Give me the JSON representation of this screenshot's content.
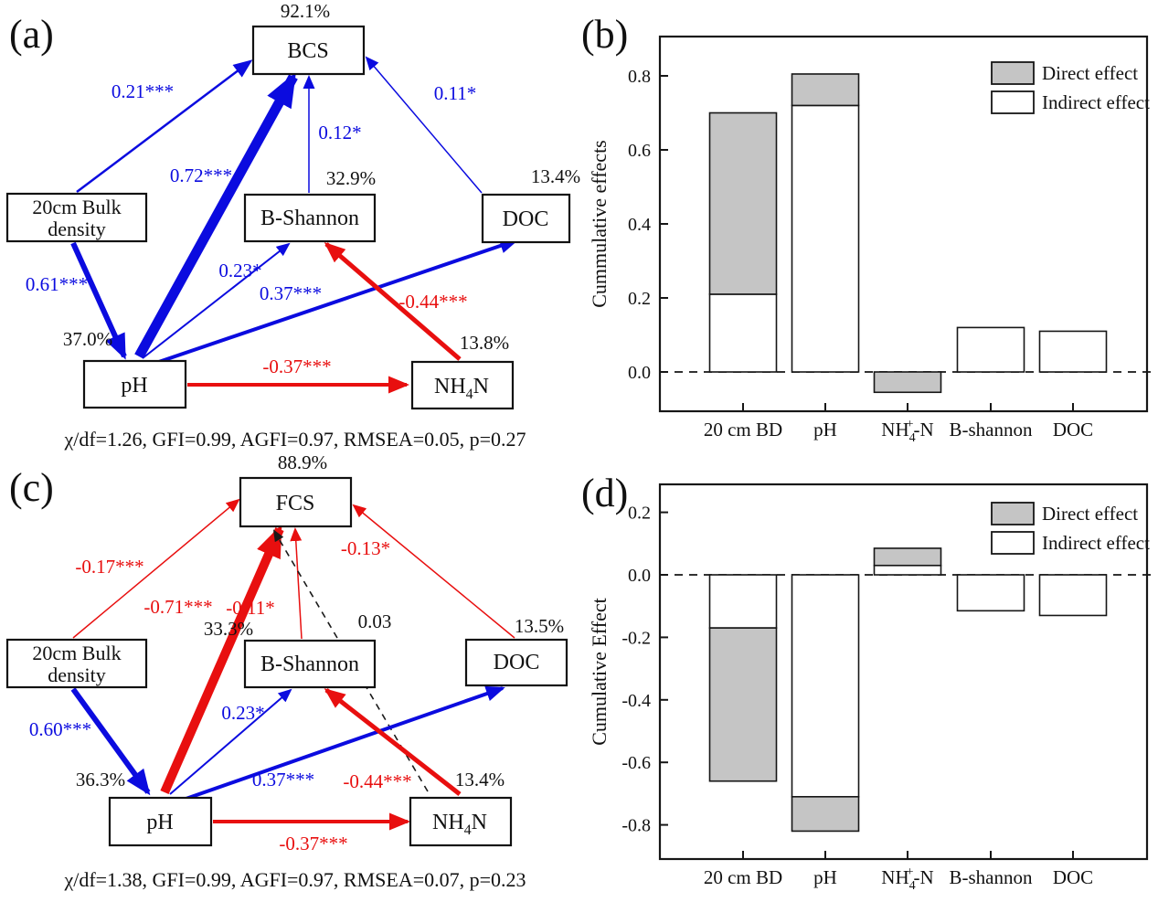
{
  "figure": {
    "panel_labels": {
      "a": "(a)",
      "b": "(b)",
      "c": "(c)",
      "d": "(d)"
    }
  },
  "colors": {
    "positive_path": "#0b0bdf",
    "negative_path": "#e80f0f",
    "nonsignificant_path": "#1a1a1a",
    "bar_gray": "#c5c5c5",
    "bar_white": "#ffffff"
  },
  "sem_a": {
    "nodes": {
      "bcs": {
        "label": "BCS",
        "r2": "92.1%"
      },
      "bulk": {
        "line1": "20cm Bulk",
        "line2": "density"
      },
      "bshannon": {
        "label": "B-Shannon",
        "r2": "32.9%"
      },
      "doc": {
        "label": "DOC",
        "r2": "13.4%"
      },
      "ph": {
        "label": "pH",
        "r2": "37.0%"
      },
      "nh4n": {
        "base": "NH",
        "sub": "4",
        "suffix": "N",
        "r2": "13.8%"
      }
    },
    "paths": [
      {
        "from": "20cm Bulk density",
        "to": "BCS",
        "coef": "0.21***"
      },
      {
        "from": "20cm Bulk density",
        "to": "pH",
        "coef": "0.61***"
      },
      {
        "from": "pH",
        "to": "BCS",
        "coef": "0.72***"
      },
      {
        "from": "B-Shannon",
        "to": "BCS",
        "coef": "0.12*"
      },
      {
        "from": "DOC",
        "to": "BCS",
        "coef": "0.11*"
      },
      {
        "from": "pH",
        "to": "B-Shannon",
        "coef": "0.23*"
      },
      {
        "from": "pH",
        "to": "DOC",
        "coef": "0.37***"
      },
      {
        "from": "NH4N",
        "to": "B-Shannon",
        "coef": "-0.44***"
      },
      {
        "from": "pH",
        "to": "NH4N",
        "coef": "-0.37***"
      }
    ],
    "fit": "χ/df=1.26,  GFI=0.99,  AGFI=0.97,  RMSEA=0.05,  p=0.27"
  },
  "sem_c": {
    "nodes": {
      "fcs": {
        "label": "FCS",
        "r2": "88.9%"
      },
      "bulk": {
        "line1": "20cm Bulk",
        "line2": "density"
      },
      "bshannon": {
        "label": "B-Shannon",
        "r2": "33.3%"
      },
      "doc": {
        "label": "DOC",
        "r2": "13.5%"
      },
      "ph": {
        "label": "pH",
        "r2": "36.3%"
      },
      "nh4n": {
        "base": "NH",
        "sub": "4",
        "suffix": "N",
        "r2": "13.4%"
      }
    },
    "paths": [
      {
        "from": "20cm Bulk density",
        "to": "FCS",
        "coef": "-0.17***"
      },
      {
        "from": "20cm Bulk density",
        "to": "pH",
        "coef": "0.60***"
      },
      {
        "from": "pH",
        "to": "FCS",
        "coef": "-0.71***"
      },
      {
        "from": "B-Shannon",
        "to": "FCS",
        "coef": "-0.11*"
      },
      {
        "from": "NH4N",
        "to": "FCS",
        "coef": "0.03"
      },
      {
        "from": "DOC",
        "to": "FCS",
        "coef": "-0.13*"
      },
      {
        "from": "pH",
        "to": "B-Shannon",
        "coef": "0.23*"
      },
      {
        "from": "pH",
        "to": "DOC",
        "coef": "0.37***"
      },
      {
        "from": "NH4N",
        "to": "B-Shannon",
        "coef": "-0.44***"
      },
      {
        "from": "pH",
        "to": "NH4N",
        "coef": "-0.37***"
      }
    ],
    "fit": "χ/df=1.38,  GFI=0.99,  AGFI=0.97,  RMSEA=0.07,  p=0.23"
  },
  "chart_data": [
    {
      "id": "b",
      "type": "bar",
      "stacked": true,
      "title": "",
      "ylabel": "Cummulative effects",
      "xlabel": "",
      "ylim": [
        -0.11,
        0.9
      ],
      "yticks": [
        "0.0",
        "0.2",
        "0.4",
        "0.6",
        "0.8"
      ],
      "zero_line": "dashed",
      "grid": false,
      "legend_position": "top-right",
      "legend": [
        {
          "label": "Direct effect",
          "fill": "gray"
        },
        {
          "label": "Indirect effect",
          "fill": "white"
        }
      ],
      "categories": [
        {
          "label": "20 cm BD"
        },
        {
          "label": "pH"
        },
        {
          "label": "NH4+-N",
          "parts": [
            {
              "t": "NH"
            },
            {
              "sub": "4"
            },
            {
              "sup": "+"
            },
            {
              "t": "-N"
            }
          ]
        },
        {
          "label": "B-shannon"
        },
        {
          "label": "DOC"
        }
      ],
      "bars": [
        {
          "category": "20 cm BD",
          "segments": [
            {
              "effect": "indirect",
              "fill": "white",
              "from": 0,
              "to": 0.21
            },
            {
              "effect": "direct",
              "fill": "gray",
              "from": 0.21,
              "to": 0.7
            }
          ]
        },
        {
          "category": "pH",
          "segments": [
            {
              "effect": "indirect",
              "fill": "white",
              "from": 0,
              "to": 0.72
            },
            {
              "effect": "direct",
              "fill": "gray",
              "from": 0.72,
              "to": 0.805
            }
          ]
        },
        {
          "category": "NH4+-N",
          "segments": [
            {
              "effect": "direct",
              "fill": "gray",
              "from": -0.055,
              "to": 0
            }
          ]
        },
        {
          "category": "B-shannon",
          "segments": [
            {
              "effect": "indirect",
              "fill": "white",
              "from": 0,
              "to": 0.12
            }
          ]
        },
        {
          "category": "DOC",
          "segments": [
            {
              "effect": "indirect",
              "fill": "white",
              "from": 0,
              "to": 0.11
            }
          ]
        }
      ]
    },
    {
      "id": "d",
      "type": "bar",
      "stacked": true,
      "title": "",
      "ylabel": "Cumulative Effect",
      "xlabel": "",
      "ylim": [
        -0.9,
        0.29
      ],
      "yticks": [
        "0.2",
        "0.0",
        "-0.2",
        "-0.4",
        "-0.6",
        "-0.8"
      ],
      "zero_line": "dashed",
      "grid": false,
      "legend_position": "top-right",
      "legend": [
        {
          "label": "Direct effect",
          "fill": "gray"
        },
        {
          "label": "Indirect effect",
          "fill": "white"
        }
      ],
      "categories": [
        {
          "label": "20 cm BD"
        },
        {
          "label": "pH"
        },
        {
          "label": "NH4+-N",
          "parts": [
            {
              "t": "NH"
            },
            {
              "sub": "4"
            },
            {
              "sup": "+"
            },
            {
              "t": "-N"
            }
          ]
        },
        {
          "label": "B-shannon"
        },
        {
          "label": "DOC"
        }
      ],
      "bars": [
        {
          "category": "20 cm BD",
          "segments": [
            {
              "effect": "indirect",
              "fill": "white",
              "from": -0.17,
              "to": 0
            },
            {
              "effect": "direct",
              "fill": "gray",
              "from": -0.66,
              "to": -0.17
            }
          ]
        },
        {
          "category": "pH",
          "segments": [
            {
              "effect": "indirect",
              "fill": "white",
              "from": -0.71,
              "to": 0
            },
            {
              "effect": "direct",
              "fill": "gray",
              "from": -0.82,
              "to": -0.71
            }
          ]
        },
        {
          "category": "NH4+-N",
          "segments": [
            {
              "effect": "indirect",
              "fill": "white",
              "from": 0,
              "to": 0.03
            },
            {
              "effect": "direct",
              "fill": "gray",
              "from": 0.03,
              "to": 0.085
            }
          ]
        },
        {
          "category": "B-shannon",
          "segments": [
            {
              "effect": "indirect",
              "fill": "white",
              "from": -0.115,
              "to": 0
            }
          ]
        },
        {
          "category": "DOC",
          "segments": [
            {
              "effect": "indirect",
              "fill": "white",
              "from": -0.13,
              "to": 0
            }
          ]
        }
      ]
    }
  ]
}
